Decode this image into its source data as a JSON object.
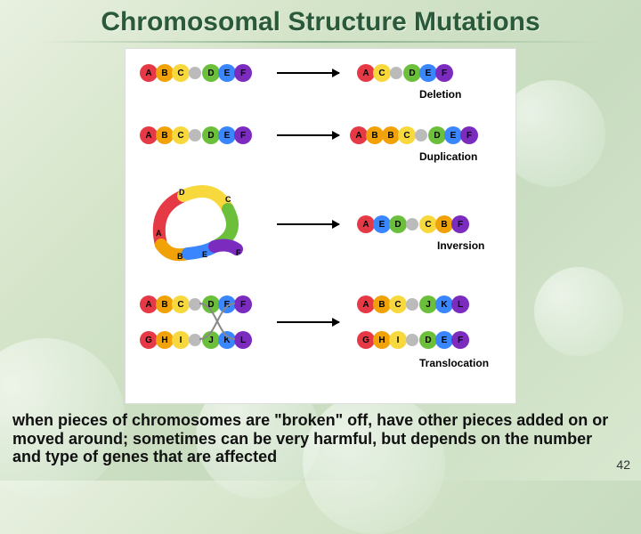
{
  "title": "Chromosomal Structure Mutations",
  "caption": "when pieces of chromosomes are \"broken\" off, have other pieces added on or moved around; sometimes can be very harmful, but depends on the number and type of genes that are affected",
  "page_number": "42",
  "colors": {
    "A": "#e63946",
    "B": "#f1a208",
    "C": "#f7d93e",
    "D": "#6bbf3b",
    "E": "#3a86ff",
    "F": "#7b2cbf",
    "G": "#e63946",
    "H": "#f1a208",
    "I": "#f7d93e",
    "J": "#6bbf3b",
    "K": "#3a86ff",
    "L": "#7b2cbf",
    "centromere": "#bbbbbb",
    "arrow": "#000000",
    "diagram_bg": "#ffffff",
    "text": "#000000"
  },
  "seg_width": 20,
  "mutations": [
    {
      "name": "Deletion",
      "before": {
        "left": [
          "A",
          "B",
          "C"
        ],
        "right": [
          "D",
          "E",
          "F"
        ]
      },
      "after": {
        "left": [
          "A",
          "C"
        ],
        "right": [
          "D",
          "E",
          "F"
        ]
      }
    },
    {
      "name": "Duplication",
      "before": {
        "left": [
          "A",
          "B",
          "C"
        ],
        "right": [
          "D",
          "E",
          "F"
        ]
      },
      "after": {
        "left": [
          "A",
          "B",
          "B",
          "C"
        ],
        "right": [
          "D",
          "E",
          "F"
        ]
      }
    },
    {
      "name": "Inversion",
      "before": {
        "left": [
          "A",
          "B",
          "C"
        ],
        "right": [
          "D",
          "E",
          "F"
        ]
      },
      "after": {
        "left": [
          "A",
          "E",
          "D"
        ],
        "right": [
          "C",
          "B",
          "F"
        ]
      }
    },
    {
      "name": "Translocation",
      "pair_before": [
        {
          "left": [
            "A",
            "B",
            "C"
          ],
          "right": [
            "D",
            "E",
            "F"
          ]
        },
        {
          "left": [
            "G",
            "H",
            "I"
          ],
          "right": [
            "J",
            "K",
            "L"
          ]
        }
      ],
      "pair_after": [
        {
          "left": [
            "A",
            "B",
            "C"
          ],
          "right": [
            "J",
            "K",
            "L"
          ]
        },
        {
          "left": [
            "G",
            "H",
            "I"
          ],
          "right": [
            "D",
            "E",
            "F"
          ]
        }
      ]
    }
  ]
}
